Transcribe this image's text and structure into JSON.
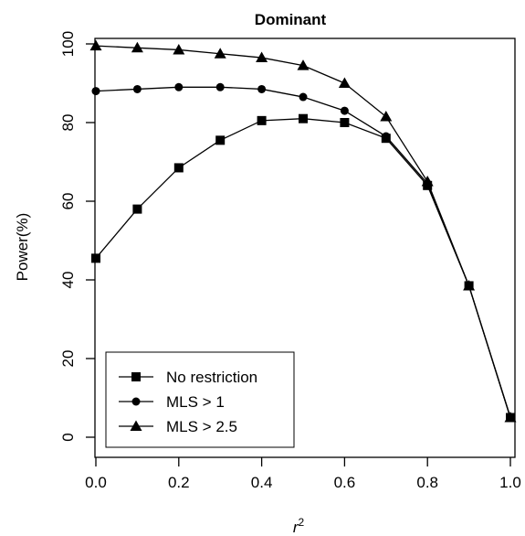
{
  "chart_data": {
    "type": "line",
    "title": "Dominant",
    "xlabel": "r",
    "xlabel_sup": "2",
    "ylabel": "Power(%)",
    "xlim": [
      0.0,
      1.0
    ],
    "ylim": [
      0,
      100
    ],
    "xticks": [
      "0.0",
      "0.2",
      "0.4",
      "0.6",
      "0.8",
      "1.0"
    ],
    "yticks": [
      "0",
      "20",
      "40",
      "60",
      "80",
      "100"
    ],
    "x": [
      0.0,
      0.1,
      0.2,
      0.3,
      0.4,
      0.5,
      0.6,
      0.7,
      0.8,
      0.9,
      1.0
    ],
    "series": [
      {
        "name": "No restriction",
        "marker": "square",
        "values": [
          45.5,
          58,
          68.5,
          75.5,
          80.5,
          81,
          80,
          76,
          64,
          38.5,
          5
        ]
      },
      {
        "name": "MLS > 1",
        "marker": "circle",
        "values": [
          88,
          88.5,
          89,
          89,
          88.5,
          86.5,
          83,
          76.5,
          64.5,
          38.5,
          5
        ]
      },
      {
        "name": "MLS > 2.5",
        "marker": "triangle",
        "values": [
          99.5,
          99,
          98.5,
          97.5,
          96.5,
          94.5,
          90,
          81.5,
          65,
          38.5,
          5
        ]
      }
    ],
    "grid": false,
    "legend_position": "bottom-left"
  }
}
